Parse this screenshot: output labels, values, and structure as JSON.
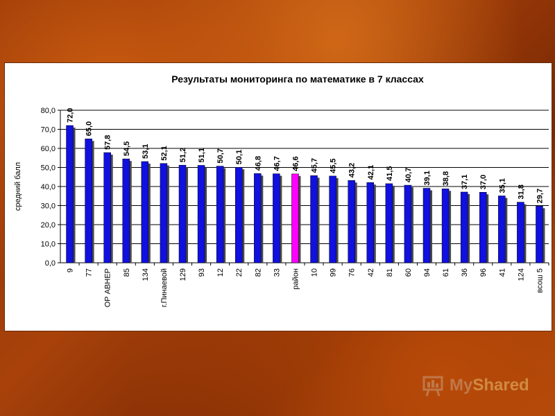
{
  "chart_data": {
    "type": "bar",
    "title": "Результаты мониторинга по математике в 7 классах",
    "ylabel": "средний балл",
    "xlabel": "",
    "ylim": [
      0,
      80
    ],
    "yticks": [
      "0,0",
      "10,0",
      "20,0",
      "30,0",
      "40,0",
      "50,0",
      "60,0",
      "70,0",
      "80,0"
    ],
    "ytick_values": [
      0,
      10,
      20,
      30,
      40,
      50,
      60,
      70,
      80
    ],
    "grid": true,
    "legend": "none",
    "categories": [
      "9",
      "77",
      "ОР АВНЕР",
      "85",
      "134",
      "г.Пинаевой",
      "129",
      "93",
      "12",
      "22",
      "82",
      "33",
      "район",
      "10",
      "99",
      "76",
      "42",
      "81",
      "60",
      "94",
      "61",
      "36",
      "96",
      "41",
      "124",
      "всош 5"
    ],
    "values": [
      72.0,
      65.0,
      57.8,
      54.5,
      53.1,
      52.1,
      51.2,
      51.1,
      50.7,
      50.1,
      46.8,
      46.7,
      46.6,
      45.7,
      45.5,
      43.2,
      42.1,
      41.5,
      40.7,
      39.1,
      38.8,
      37.1,
      37.0,
      35.1,
      31.8,
      29.7
    ],
    "value_labels": [
      "72,0",
      "65,0",
      "57,8",
      "54,5",
      "53,1",
      "52,1",
      "51,2",
      "51,1",
      "50,7",
      "50,1",
      "46,8",
      "46,7",
      "46,6",
      "45,7",
      "45,5",
      "43,2",
      "42,1",
      "41,5",
      "40,7",
      "39,1",
      "38,8",
      "37,1",
      "37,0",
      "35,1",
      "31,8",
      "29,7"
    ],
    "highlight_index": 12,
    "colors": {
      "bar": "#1010e0",
      "highlight": "#ff00ff",
      "grid": "#000000"
    }
  },
  "watermark": {
    "text_left": "My",
    "text_right": "Shared"
  }
}
